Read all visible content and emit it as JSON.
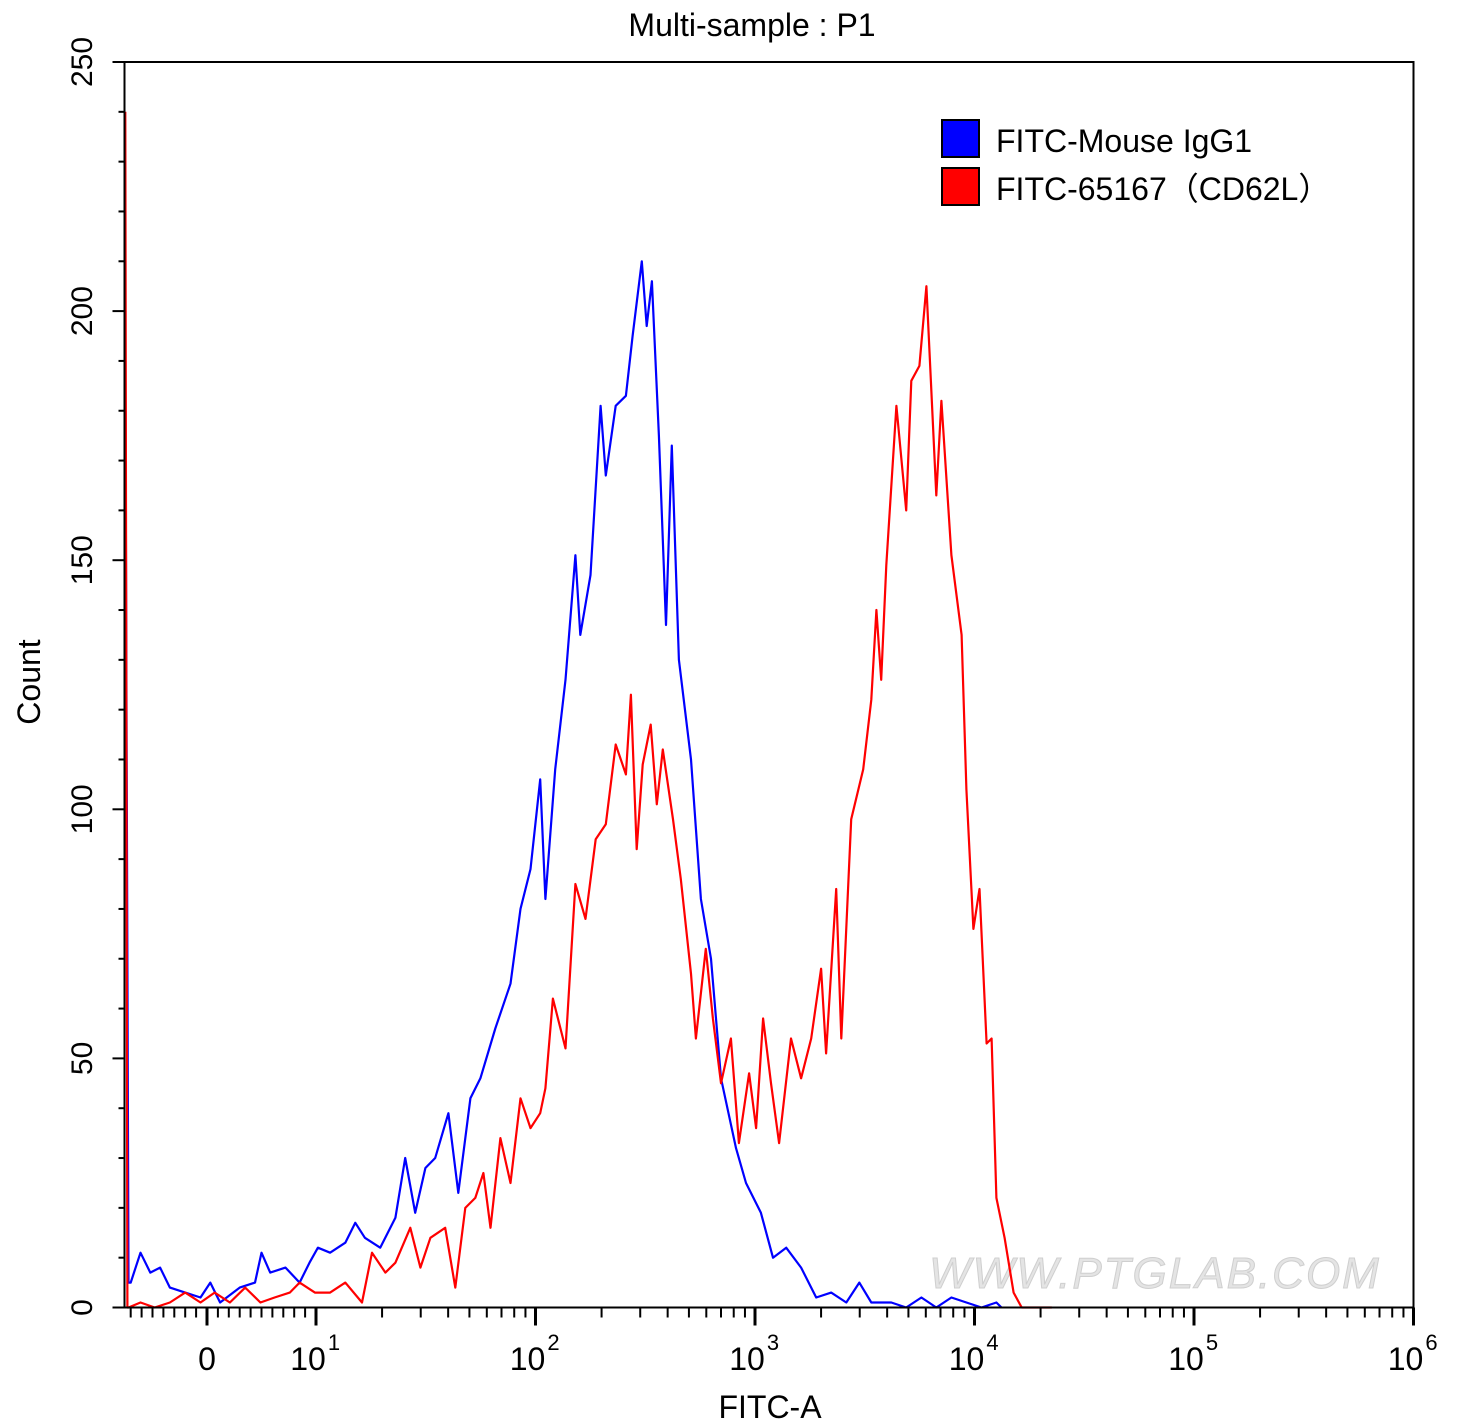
{
  "chart_data": {
    "type": "line",
    "title": "Multi-sample : P1",
    "xlabel": "FITC-A",
    "ylabel": "Count",
    "x_scale": "biexponential",
    "xlim": [
      -7.6,
      1000000
    ],
    "ylim": [
      0,
      250
    ],
    "grid": false,
    "legend_position": "top-right",
    "x_ticks": [
      {
        "value": 0,
        "label": "0",
        "sup": ""
      },
      {
        "value": 10,
        "label": "10",
        "sup": "1"
      },
      {
        "value": 100,
        "label": "10",
        "sup": "2"
      },
      {
        "value": 1000,
        "label": "10",
        "sup": "3"
      },
      {
        "value": 10000,
        "label": "10",
        "sup": "4"
      },
      {
        "value": 100000,
        "label": "10",
        "sup": "5"
      },
      {
        "value": 1000000,
        "label": "10",
        "sup": "6"
      }
    ],
    "y_ticks": [
      {
        "value": 0,
        "label": "0"
      },
      {
        "value": 50,
        "label": "50"
      },
      {
        "value": 100,
        "label": "100"
      },
      {
        "value": 150,
        "label": "150"
      },
      {
        "value": 200,
        "label": "200"
      },
      {
        "value": 250,
        "label": "250"
      }
    ],
    "series": [
      {
        "name": "FITC-Mouse IgG1",
        "color": "#0000ff",
        "x": [
          -7.5,
          -7.2,
          -7.0,
          -6.1,
          -5.2,
          -4.3,
          -3.4,
          -2.0,
          -0.6,
          0.3,
          1.2,
          3.0,
          4.4,
          5.0,
          5.8,
          7.2,
          8.5,
          9.4,
          10.2,
          11.6,
          13.6,
          15.1,
          16.7,
          19.6,
          23,
          25.5,
          28.3,
          31.5,
          34.9,
          40.1,
          44.5,
          50.5,
          56.1,
          65.6,
          76.9,
          85.4,
          94.9,
          105,
          111,
          123,
          137,
          152,
          160,
          178,
          198,
          209,
          232,
          258,
          277,
          305,
          321,
          339,
          365,
          393,
          418,
          450,
          511,
          567,
          630,
          700,
          819,
          910,
          1064,
          1208,
          1387,
          1622,
          1901,
          2223,
          2606,
          2985,
          3388,
          4178,
          4887,
          5728,
          6699,
          7852,
          9183,
          10765,
          12589,
          13274
        ],
        "y": [
          190,
          5,
          5,
          11,
          7,
          8,
          4,
          3,
          2,
          5,
          1,
          4,
          5,
          11,
          7,
          8,
          5,
          9,
          12,
          11,
          13,
          17,
          14,
          12,
          18,
          30,
          19,
          28,
          30,
          39,
          23,
          42,
          46,
          56,
          65,
          80,
          88,
          106,
          82,
          108,
          126,
          151,
          135,
          147,
          181,
          167,
          181,
          183,
          195,
          210,
          197,
          206,
          175,
          137,
          173,
          130,
          110,
          82,
          70,
          46,
          32,
          25,
          19,
          10,
          12,
          8,
          2,
          3,
          1,
          5,
          1,
          1,
          0,
          2,
          0,
          2,
          1,
          0,
          1,
          0
        ]
      },
      {
        "name": "FITC-65167（CD62L）",
        "color": "#ff0000",
        "x": [
          -7.5,
          -7.3,
          -7.2,
          -6.1,
          -4.8,
          -3.4,
          -2.0,
          -0.6,
          0.7,
          2.1,
          3.5,
          4.9,
          6.2,
          7.6,
          8.5,
          9.9,
          11.6,
          13.6,
          16.2,
          18.0,
          20.7,
          23,
          26.9,
          29.9,
          33.2,
          38.8,
          43.1,
          47.9,
          53.2,
          57.9,
          62.4,
          69.2,
          76.9,
          85.4,
          94.9,
          105,
          111,
          120,
          137,
          152,
          169,
          188,
          209,
          232,
          258,
          272,
          289,
          308,
          335,
          357,
          380,
          423,
          459,
          511,
          538,
          597,
          643,
          700,
          777,
          845,
          940,
          1012,
          1089,
          1183,
          1288,
          1459,
          1622,
          1803,
          2000,
          2109,
          2344,
          2472,
          2742,
          3112,
          3388,
          3573,
          3758,
          3963,
          4406,
          4887,
          5152,
          5610,
          6039,
          6699,
          7063,
          7852,
          8730,
          9183,
          9886,
          10544,
          11350,
          11967,
          12589,
          13709,
          15066,
          16406,
          22491
        ],
        "y": [
          240,
          0,
          0,
          1,
          0,
          1,
          3,
          1,
          3,
          1,
          4,
          1,
          2,
          3,
          5,
          3,
          3,
          5,
          1,
          11,
          7,
          9,
          16,
          8,
          14,
          16,
          4,
          20,
          22,
          27,
          16,
          34,
          25,
          42,
          36,
          39,
          44,
          62,
          52,
          85,
          78,
          94,
          97,
          113,
          107,
          123,
          92,
          109,
          117,
          101,
          112,
          98,
          86,
          67,
          54,
          72,
          58,
          45,
          54,
          33,
          47,
          36,
          58,
          45,
          33,
          54,
          46,
          54,
          68,
          51,
          84,
          54,
          98,
          108,
          122,
          140,
          126,
          149,
          181,
          160,
          186,
          189,
          205,
          163,
          182,
          151,
          135,
          104,
          76,
          84,
          53,
          54,
          22,
          14,
          3,
          0,
          0
        ]
      }
    ],
    "watermark": "WWW.PTGLAB.COM"
  }
}
